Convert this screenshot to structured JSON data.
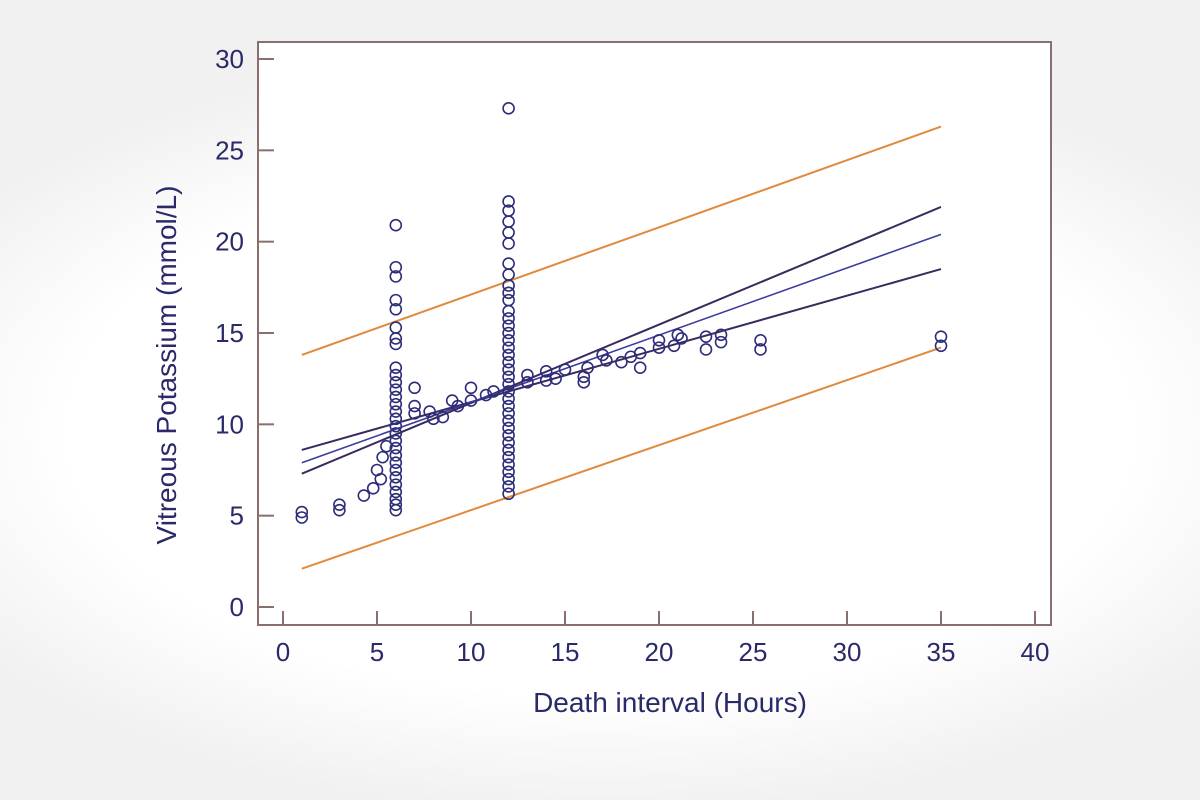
{
  "chart_data": {
    "type": "scatter",
    "title": "",
    "xlabel": "Death interval (Hours)",
    "ylabel": "Vitreous Potassium (mmol/L)",
    "xlim": [
      0,
      40
    ],
    "ylim": [
      0,
      30
    ],
    "xticks": [
      0,
      5,
      10,
      15,
      20,
      25,
      30,
      35,
      40
    ],
    "yticks": [
      0,
      5,
      10,
      15,
      20,
      25,
      30
    ],
    "grid": false,
    "legend": "none",
    "colors": {
      "axis": "#8a6f6f",
      "points": "#2d2d7a",
      "fit": "#3a3aa0",
      "confidence": "#3a2a5e",
      "prediction": "#e08a3c",
      "text": "#2a2a6a"
    },
    "points": [
      [
        1,
        5.2
      ],
      [
        1,
        4.9
      ],
      [
        3,
        5.6
      ],
      [
        3,
        5.3
      ],
      [
        4.3,
        6.1
      ],
      [
        4.8,
        6.5
      ],
      [
        5.2,
        7.0
      ],
      [
        5,
        7.5
      ],
      [
        5.3,
        8.2
      ],
      [
        5.5,
        8.8
      ],
      [
        6,
        20.9
      ],
      [
        6,
        18.6
      ],
      [
        6,
        18.1
      ],
      [
        6,
        16.8
      ],
      [
        6,
        16.3
      ],
      [
        6,
        15.3
      ],
      [
        6,
        14.7
      ],
      [
        6,
        14.4
      ],
      [
        6,
        13.1
      ],
      [
        6,
        12.7
      ],
      [
        6,
        12.3
      ],
      [
        6,
        11.9
      ],
      [
        6,
        11.5
      ],
      [
        6,
        11.1
      ],
      [
        6,
        10.7
      ],
      [
        6,
        10.3
      ],
      [
        6,
        9.9
      ],
      [
        6,
        9.5
      ],
      [
        6,
        9.1
      ],
      [
        6,
        8.7
      ],
      [
        6,
        8.3
      ],
      [
        6,
        7.9
      ],
      [
        6,
        7.5
      ],
      [
        6,
        7.1
      ],
      [
        6,
        6.7
      ],
      [
        6,
        6.3
      ],
      [
        6,
        5.9
      ],
      [
        6,
        5.6
      ],
      [
        6,
        5.3
      ],
      [
        7,
        12.0
      ],
      [
        7,
        11.0
      ],
      [
        7,
        10.6
      ],
      [
        7.8,
        10.7
      ],
      [
        8,
        10.3
      ],
      [
        8.5,
        10.4
      ],
      [
        9,
        11.3
      ],
      [
        9.3,
        11.0
      ],
      [
        10,
        12.0
      ],
      [
        10,
        11.3
      ],
      [
        10.8,
        11.6
      ],
      [
        11.2,
        11.8
      ],
      [
        12,
        27.3
      ],
      [
        12,
        22.2
      ],
      [
        12,
        21.7
      ],
      [
        12,
        21.1
      ],
      [
        12,
        20.5
      ],
      [
        12,
        19.9
      ],
      [
        12,
        18.8
      ],
      [
        12,
        18.2
      ],
      [
        12,
        17.6
      ],
      [
        12,
        17.2
      ],
      [
        12,
        16.8
      ],
      [
        12,
        16.2
      ],
      [
        12,
        15.8
      ],
      [
        12,
        15.4
      ],
      [
        12,
        15.0
      ],
      [
        12,
        14.6
      ],
      [
        12,
        14.2
      ],
      [
        12,
        13.8
      ],
      [
        12,
        13.4
      ],
      [
        12,
        13.0
      ],
      [
        12,
        12.6
      ],
      [
        12,
        12.2
      ],
      [
        12,
        11.8
      ],
      [
        12,
        11.4
      ],
      [
        12,
        11.0
      ],
      [
        12,
        10.6
      ],
      [
        12,
        10.2
      ],
      [
        12,
        9.8
      ],
      [
        12,
        9.4
      ],
      [
        12,
        9.0
      ],
      [
        12,
        8.6
      ],
      [
        12,
        8.2
      ],
      [
        12,
        7.8
      ],
      [
        12,
        7.4
      ],
      [
        12,
        7.0
      ],
      [
        12,
        6.6
      ],
      [
        12,
        6.2
      ],
      [
        13,
        12.7
      ],
      [
        13,
        12.3
      ],
      [
        14,
        12.9
      ],
      [
        14,
        12.4
      ],
      [
        14.5,
        12.5
      ],
      [
        15,
        13.0
      ],
      [
        16,
        12.6
      ],
      [
        16,
        12.3
      ],
      [
        16.2,
        13.1
      ],
      [
        17,
        13.8
      ],
      [
        17.2,
        13.5
      ],
      [
        18,
        13.4
      ],
      [
        18.5,
        13.7
      ],
      [
        19,
        13.9
      ],
      [
        19,
        13.1
      ],
      [
        20,
        14.2
      ],
      [
        20,
        14.6
      ],
      [
        20.8,
        14.3
      ],
      [
        21,
        14.9
      ],
      [
        21.2,
        14.7
      ],
      [
        22.5,
        14.8
      ],
      [
        22.5,
        14.1
      ],
      [
        23.3,
        14.5
      ],
      [
        23.3,
        14.9
      ],
      [
        25.4,
        14.6
      ],
      [
        25.4,
        14.1
      ],
      [
        35,
        14.8
      ],
      [
        35,
        14.3
      ]
    ],
    "regression_line": [
      [
        1,
        7.9
      ],
      [
        35,
        20.4
      ]
    ],
    "confidence_band": {
      "upper": [
        [
          1,
          8.6
        ],
        [
          35,
          18.5
        ]
      ],
      "lower": [
        [
          1,
          7.3
        ],
        [
          35,
          21.9
        ]
      ]
    },
    "prediction_band": {
      "upper": [
        [
          1,
          13.8
        ],
        [
          35,
          26.3
        ]
      ],
      "lower": [
        [
          1,
          2.1
        ],
        [
          35,
          14.2
        ]
      ]
    }
  }
}
